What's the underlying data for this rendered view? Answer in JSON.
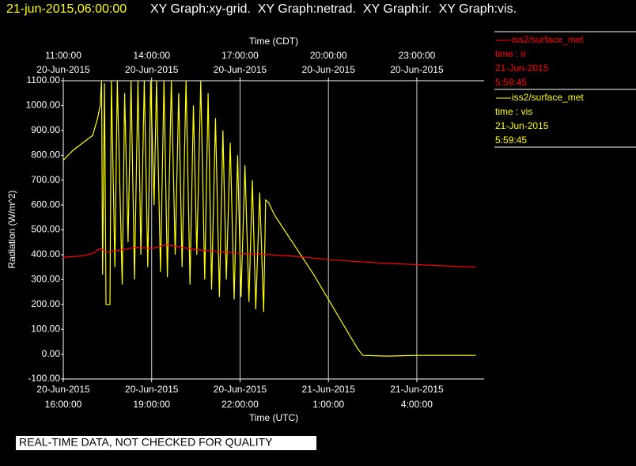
{
  "chart_data": {
    "type": "line",
    "title": "21-jun-2015,06:00:00",
    "subtitle": "XY Graph:xy-grid.  XY Graph:netrad.  XY Graph:ir.  XY Graph:vis.",
    "xlabel": "Time (UTC)",
    "x2label": "Time (CDT)",
    "ylabel": "Radiation (W/m^2)",
    "notice": "REAL-TIME DATA, NOT CHECKED FOR QUALITY",
    "xlim": [
      "2015-06-20T16:00",
      "2015-06-21T06:17"
    ],
    "xticks": [
      {
        "value": "2015-06-20T16:00",
        "label": [
          "20-Jun-2015",
          "16:00:00"
        ]
      },
      {
        "value": "2015-06-20T19:00",
        "label": [
          "20-Jun-2015",
          "19:00:00"
        ]
      },
      {
        "value": "2015-06-20T22:00",
        "label": [
          "20-Jun-2015",
          "22:00:00"
        ]
      },
      {
        "value": "2015-06-21T01:00",
        "label": [
          "21-Jun-2015",
          "1:00:00"
        ]
      },
      {
        "value": "2015-06-21T04:00",
        "label": [
          "21-Jun-2015",
          "4:00:00"
        ]
      }
    ],
    "x2ticks": [
      {
        "value": "2015-06-20T16:00",
        "label": [
          "11:00:00",
          "20-Jun-2015"
        ]
      },
      {
        "value": "2015-06-20T19:00",
        "label": [
          "14:00:00",
          "20-Jun-2015"
        ]
      },
      {
        "value": "2015-06-20T22:00",
        "label": [
          "17:00:00",
          "20-Jun-2015"
        ]
      },
      {
        "value": "2015-06-21T01:00",
        "label": [
          "20:00:00",
          "20-Jun-2015"
        ]
      },
      {
        "value": "2015-06-21T04:00",
        "label": [
          "23:00:00",
          "20-Jun-2015"
        ]
      }
    ],
    "ylim": [
      -100,
      1100
    ],
    "yticks": [
      {
        "value": -100,
        "label": "-100.00"
      },
      {
        "value": 0,
        "label": "0.00"
      },
      {
        "value": 100,
        "label": "100.00"
      },
      {
        "value": 200,
        "label": "200.00"
      },
      {
        "value": 300,
        "label": "300.00"
      },
      {
        "value": 400,
        "label": "400.00"
      },
      {
        "value": 500,
        "label": "500.00"
      },
      {
        "value": 600,
        "label": "600.00"
      },
      {
        "value": 700,
        "label": "700.00"
      },
      {
        "value": 800,
        "label": "800.00"
      },
      {
        "value": 900,
        "label": "900.00"
      },
      {
        "value": 1000,
        "label": "1000.00"
      },
      {
        "value": 1100,
        "label": "1100.00"
      }
    ],
    "grid": "x",
    "series": [
      {
        "name": "iss2/surface_met",
        "color": "#ff0000",
        "legend_lines": [
          "time : ir",
          "21-Jun-2015",
          "5:59:45"
        ],
        "x": [
          "2015-06-20T16:00",
          "2015-06-20T16:40",
          "2015-06-20T17:00",
          "2015-06-20T17:15",
          "2015-06-20T17:30",
          "2015-06-20T18:00",
          "2015-06-20T18:30",
          "2015-06-20T19:00",
          "2015-06-20T19:30",
          "2015-06-20T20:00",
          "2015-06-20T20:30",
          "2015-06-20T21:00",
          "2015-06-20T21:30",
          "2015-06-20T22:00",
          "2015-06-20T23:00",
          "2015-06-21T00:00",
          "2015-06-21T01:00",
          "2015-06-21T02:00",
          "2015-06-21T03:00",
          "2015-06-21T04:00",
          "2015-06-21T05:00",
          "2015-06-21T06:00"
        ],
        "values": [
          390,
          395,
          405,
          425,
          410,
          420,
          430,
          425,
          440,
          430,
          420,
          415,
          410,
          405,
          400,
          392,
          380,
          372,
          365,
          360,
          355,
          350
        ]
      },
      {
        "name": "iss2/surface_met",
        "color": "#ffff00",
        "legend_lines": [
          "time : vis",
          "21-Jun-2015",
          "5:59:45"
        ],
        "x": [
          "2015-06-20T16:00",
          "2015-06-20T16:20",
          "2015-06-20T16:40",
          "2015-06-20T17:00",
          "2015-06-20T17:10",
          "2015-06-20T17:15",
          "2015-06-20T17:18",
          "2015-06-20T17:20",
          "2015-06-20T17:24",
          "2015-06-20T17:27",
          "2015-06-20T17:35",
          "2015-06-20T17:38",
          "2015-06-20T17:45",
          "2015-06-20T17:50",
          "2015-06-20T18:00",
          "2015-06-20T18:05",
          "2015-06-20T18:12",
          "2015-06-20T18:18",
          "2015-06-20T18:25",
          "2015-06-20T18:32",
          "2015-06-20T18:38",
          "2015-06-20T18:45",
          "2015-06-20T18:52",
          "2015-06-20T18:58",
          "2015-06-20T19:05",
          "2015-06-20T19:10",
          "2015-06-20T19:18",
          "2015-06-20T19:25",
          "2015-06-20T19:32",
          "2015-06-20T19:40",
          "2015-06-20T19:48",
          "2015-06-20T19:55",
          "2015-06-20T20:02",
          "2015-06-20T20:10",
          "2015-06-20T20:18",
          "2015-06-20T20:25",
          "2015-06-20T20:32",
          "2015-06-20T20:40",
          "2015-06-20T20:48",
          "2015-06-20T20:55",
          "2015-06-20T21:02",
          "2015-06-20T21:10",
          "2015-06-20T21:18",
          "2015-06-20T21:25",
          "2015-06-20T21:32",
          "2015-06-20T21:40",
          "2015-06-20T21:48",
          "2015-06-20T21:55",
          "2015-06-20T22:02",
          "2015-06-20T22:10",
          "2015-06-20T22:18",
          "2015-06-20T22:25",
          "2015-06-20T22:32",
          "2015-06-20T22:40",
          "2015-06-20T22:48",
          "2015-06-20T22:52",
          "2015-06-20T22:58",
          "2015-06-20T23:10",
          "2015-06-20T23:30",
          "2015-06-21T00:00",
          "2015-06-21T00:30",
          "2015-06-21T01:00",
          "2015-06-21T01:30",
          "2015-06-21T02:00",
          "2015-06-21T02:10",
          "2015-06-21T03:00",
          "2015-06-21T04:00",
          "2015-06-21T05:00",
          "2015-06-21T06:00"
        ],
        "values": [
          780,
          820,
          850,
          880,
          950,
          1000,
          1100,
          320,
          1090,
          200,
          200,
          1100,
          350,
          1100,
          280,
          1050,
          450,
          1100,
          300,
          1100,
          400,
          1100,
          350,
          1100,
          600,
          1100,
          330,
          1100,
          310,
          1100,
          400,
          1050,
          350,
          1100,
          280,
          1000,
          400,
          1100,
          300,
          1050,
          260,
          950,
          230,
          900,
          300,
          850,
          220,
          800,
          230,
          760,
          210,
          700,
          180,
          650,
          170,
          620,
          610,
          560,
          500,
          410,
          320,
          220,
          120,
          20,
          -5,
          -8,
          -5,
          -5,
          -5
        ]
      }
    ]
  }
}
